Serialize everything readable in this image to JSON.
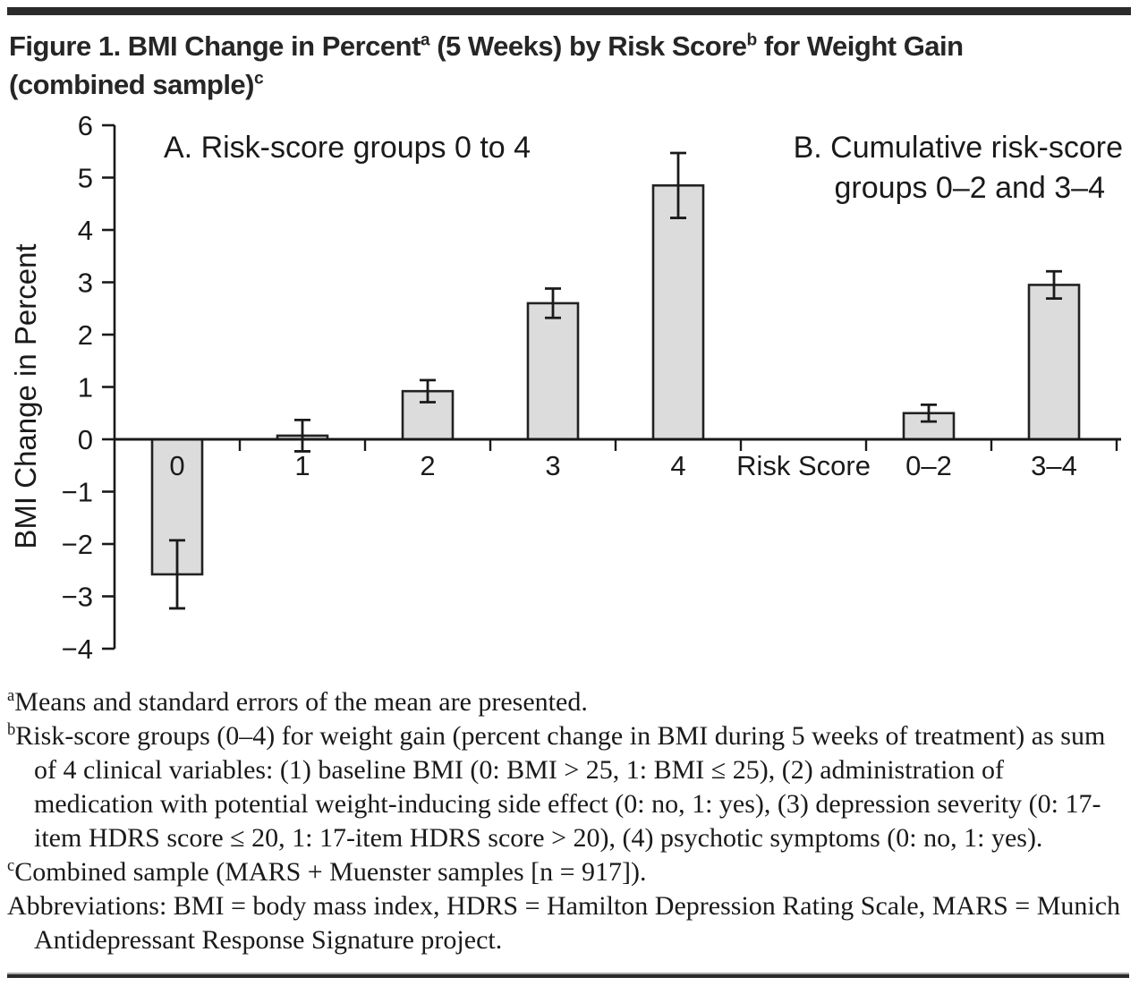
{
  "page": {
    "title_lines": [
      [
        {
          "t": "Figure 1. BMI Change in Percent"
        },
        {
          "sup": "a"
        },
        {
          "t": " (5 Weeks) by Risk Score"
        },
        {
          "sup": "b"
        },
        {
          "t": " for Weight Gain"
        }
      ],
      [
        {
          "t": "(combined sample)"
        },
        {
          "sup": "c"
        }
      ]
    ]
  },
  "chart_data": {
    "type": "bar",
    "ylabel": "BMI Change in Percent",
    "axis_mid_label": "Risk Score",
    "ylim": [
      -4,
      6
    ],
    "yticks": [
      6,
      5,
      4,
      3,
      2,
      1,
      0,
      -1,
      -2,
      -3,
      -4
    ],
    "grid": false,
    "error_bars": "standard error of the mean",
    "panels": [
      {
        "label": "A. Risk-score groups 0 to 4",
        "categories": [
          "0",
          "1",
          "2",
          "3",
          "4"
        ],
        "values": [
          -2.58,
          0.07,
          0.92,
          2.6,
          4.85
        ],
        "sem": [
          0.65,
          0.3,
          0.21,
          0.28,
          0.62
        ]
      },
      {
        "label_lines": [
          "B. Cumulative risk-score",
          "groups 0–2 and 3–4"
        ],
        "categories": [
          "0–2",
          "3–4"
        ],
        "values": [
          0.5,
          2.95
        ],
        "sem": [
          0.16,
          0.26
        ]
      }
    ],
    "bar_fill": "#dcdcdc",
    "bar_stroke": "#222222",
    "axis_color": "#1a1a1a"
  },
  "footnotes": [
    [
      {
        "sup": "a"
      },
      {
        "t": "Means and standard errors of the mean are presented."
      }
    ],
    [
      {
        "sup": "b"
      },
      {
        "t": "Risk-score groups (0–4) for weight gain (percent change in BMI during 5 weeks of treatment) as sum of 4 clinical variables: (1) baseline BMI (0: BMI > 25, 1: BMI ≤ 25), (2) administration of medication with potential weight-inducing side effect (0: no, 1: yes), (3) depression severity (0: 17-item HDRS score ≤ 20, 1: 17-item HDRS score > 20), (4) psychotic symptoms (0: no, 1: yes)."
      }
    ],
    [
      {
        "sup": "c"
      },
      {
        "t": "Combined sample (MARS + Muenster samples [n = 917])."
      }
    ],
    [
      {
        "t": "Abbreviations: BMI = body mass index, HDRS = Hamilton Depression Rating Scale, MARS = Munich Antidepressant Response Signature project."
      }
    ]
  ]
}
